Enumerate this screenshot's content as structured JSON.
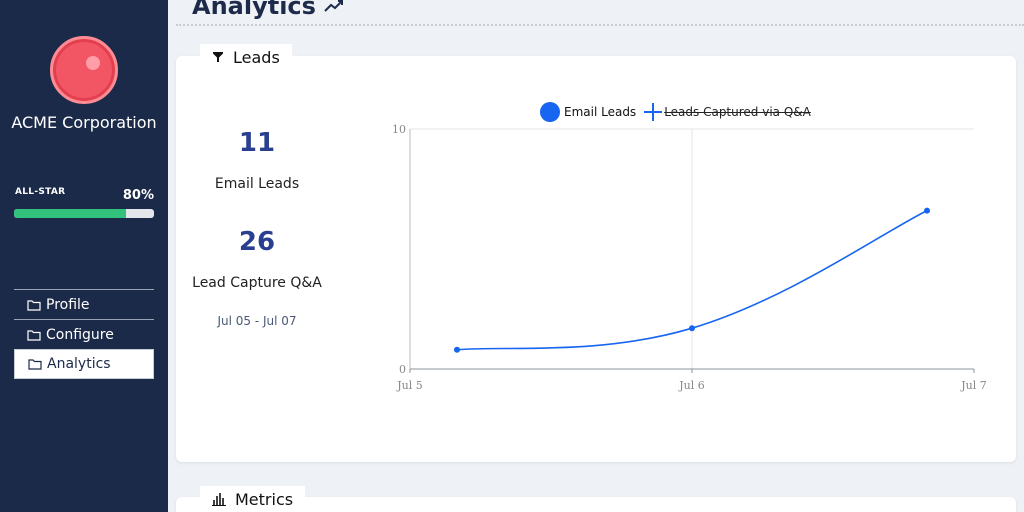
{
  "sidebar": {
    "company": "ACME Corporation",
    "tier_label": "ALL-STAR",
    "tier_percent_label": "80%",
    "tier_progress": 0.8,
    "nav": [
      {
        "label": "Profile",
        "icon": "folder-icon"
      },
      {
        "label": "Configure",
        "icon": "folder-icon"
      },
      {
        "label": "Analytics",
        "icon": "folder-icon",
        "active": true
      }
    ]
  },
  "header": {
    "title": "Analytics",
    "icon": "trend-line-icon"
  },
  "leads_card": {
    "tab_label": "Leads",
    "tab_icon": "funnel-icon",
    "email_leads_value": "11",
    "email_leads_label": "Email Leads",
    "qa_leads_value": "26",
    "qa_leads_label": "Lead Capture Q&A",
    "date_range": "Jul 05 - Jul 07"
  },
  "metrics_card": {
    "tab_label": "Metrics",
    "tab_icon": "bar-chart-icon"
  },
  "colors": {
    "sidebar_bg": "#1c2a49",
    "accent_blue": "#1765f0",
    "progress_green": "#33c27c",
    "stat_blue": "#2a3f8f"
  },
  "chart_data": {
    "type": "line",
    "title": "",
    "xlabel": "",
    "ylabel": "",
    "x_ticks": [
      "Jul 5",
      "Jul 6",
      "Jul 7"
    ],
    "y_ticks": [
      "0",
      "10"
    ],
    "ylim": [
      0,
      10
    ],
    "legend_position": "top-center",
    "grid": true,
    "series": [
      {
        "name": "Email Leads",
        "color": "#1765f0",
        "visible": true,
        "points": [
          {
            "x": "2023-07-05 04:00",
            "y": 0.8
          },
          {
            "x": "2023-07-06 00:00",
            "y": 1.7
          },
          {
            "x": "2023-07-06 20:00",
            "y": 6.6
          }
        ]
      },
      {
        "name": "Leads Captured via Q&A",
        "color": "#1765f0",
        "visible": false
      }
    ]
  }
}
